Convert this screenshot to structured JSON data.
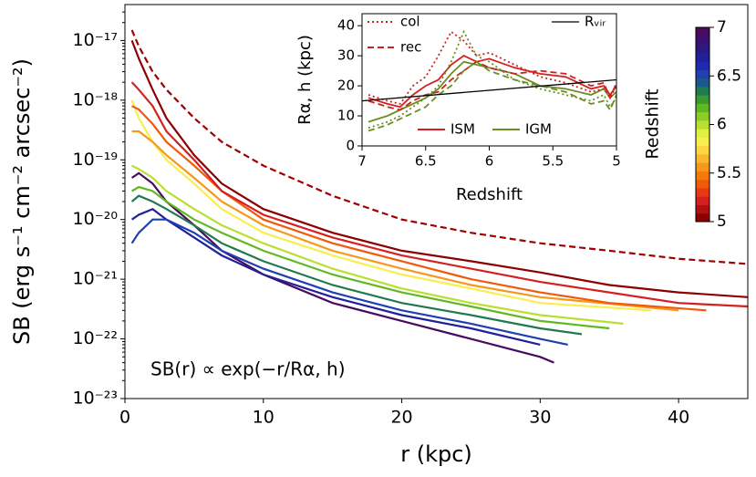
{
  "chart_data": [
    {
      "type": "line",
      "xlabel": "r  (kpc)",
      "ylabel": "SB  (erg s⁻¹ cm⁻² arcsec⁻²)",
      "annotation": "SB(r) ∝ exp(−r/Rα, h)",
      "log_y": true,
      "xlim": [
        0,
        45
      ],
      "ylim": [
        1e-23,
        4e-17
      ],
      "xticks": [
        0,
        10,
        20,
        30,
        40
      ],
      "yticks": [
        {
          "value": 1e-23,
          "label": "10⁻²³"
        },
        {
          "value": 1e-22,
          "label": "10⁻²²"
        },
        {
          "value": 1e-21,
          "label": "10⁻²¹"
        },
        {
          "value": 1e-20,
          "label": "10⁻²⁰"
        },
        {
          "value": 1e-19,
          "label": "10⁻¹⁹"
        },
        {
          "value": 1e-18,
          "label": "10⁻¹⁸"
        },
        {
          "value": 1e-17,
          "label": "10⁻¹⁷"
        }
      ],
      "series": [
        {
          "color": "#4a0a60",
          "x": [
            0.5,
            1,
            2,
            3,
            5,
            7,
            10,
            15,
            20,
            25,
            30,
            31
          ],
          "values": [
            5e-20,
            6e-20,
            4e-20,
            2e-20,
            8e-21,
            3e-21,
            1.2e-21,
            4e-22,
            2e-22,
            1e-22,
            5e-23,
            4e-23
          ]
        },
        {
          "color": "#20209a",
          "x": [
            0.5,
            1,
            2,
            3,
            5,
            7,
            10,
            15,
            20,
            25,
            30
          ],
          "values": [
            1e-20,
            1.2e-20,
            1.5e-20,
            1e-20,
            5e-21,
            2.5e-21,
            1.2e-21,
            5e-22,
            2.5e-22,
            1.5e-22,
            8e-23
          ]
        },
        {
          "color": "#1e40b0",
          "x": [
            0.5,
            1,
            2,
            3,
            5,
            7,
            10,
            15,
            20,
            25,
            30,
            32
          ],
          "values": [
            4e-21,
            6e-21,
            1e-20,
            1e-20,
            6e-21,
            3e-21,
            1.5e-21,
            6e-22,
            3e-22,
            1.8e-22,
            1e-22,
            8e-23
          ]
        },
        {
          "color": "#207a50",
          "x": [
            0.5,
            1,
            2,
            3,
            5,
            7,
            10,
            15,
            20,
            25,
            30,
            33
          ],
          "values": [
            2e-20,
            2.5e-20,
            2e-20,
            1.5e-20,
            8e-21,
            4e-21,
            2e-21,
            8e-22,
            4e-22,
            2.5e-22,
            1.5e-22,
            1.2e-22
          ]
        },
        {
          "color": "#60b820",
          "x": [
            0.5,
            1,
            2,
            3,
            5,
            7,
            10,
            15,
            20,
            25,
            30,
            35
          ],
          "values": [
            3e-20,
            3.5e-20,
            3e-20,
            2e-20,
            1e-20,
            6e-21,
            3e-21,
            1.2e-21,
            6e-22,
            3.5e-22,
            2e-22,
            1.5e-22
          ]
        },
        {
          "color": "#b8e030",
          "x": [
            0.5,
            1,
            2,
            3,
            5,
            7,
            10,
            15,
            20,
            25,
            30,
            36
          ],
          "values": [
            8e-20,
            7e-20,
            5e-20,
            3e-20,
            1.5e-20,
            8e-21,
            4e-21,
            1.5e-21,
            7e-22,
            4e-22,
            2.5e-22,
            1.8e-22
          ]
        },
        {
          "color": "#f8ee50",
          "x": [
            0.5,
            1,
            2,
            3,
            5,
            7,
            10,
            15,
            20,
            25,
            30,
            38
          ],
          "values": [
            1e-18,
            5e-19,
            2e-19,
            1e-19,
            4e-20,
            1.5e-20,
            6e-21,
            2.5e-21,
            1.2e-21,
            7e-22,
            4e-22,
            3e-22
          ]
        },
        {
          "color": "#f8981a",
          "x": [
            0.5,
            1,
            2,
            3,
            5,
            7,
            10,
            15,
            20,
            25,
            30,
            40
          ],
          "values": [
            3e-19,
            3e-19,
            2e-19,
            1.2e-19,
            5e-20,
            2e-20,
            8e-21,
            3e-21,
            1.5e-21,
            8e-22,
            5e-22,
            3e-22
          ]
        },
        {
          "color": "#f05a0a",
          "x": [
            0.5,
            1,
            2,
            3,
            5,
            7,
            10,
            15,
            20,
            25,
            30,
            35,
            42
          ],
          "values": [
            8e-19,
            7e-19,
            4e-19,
            2e-19,
            8e-20,
            3e-20,
            1e-20,
            4e-21,
            2e-21,
            1e-21,
            6e-22,
            4e-22,
            3e-22
          ]
        },
        {
          "color": "#d42020",
          "x": [
            0.5,
            1,
            2,
            3,
            5,
            7,
            10,
            15,
            20,
            25,
            30,
            35,
            40,
            45
          ],
          "values": [
            2e-18,
            1.5e-18,
            8e-19,
            3e-19,
            1e-19,
            3e-20,
            1.2e-20,
            5e-21,
            2.5e-21,
            1.5e-21,
            9e-22,
            6e-22,
            4e-22,
            3.5e-22
          ]
        },
        {
          "color": "#8b0000",
          "x": [
            0.5,
            1,
            2,
            3,
            5,
            7,
            10,
            15,
            20,
            25,
            30,
            35,
            40,
            45
          ],
          "values": [
            1e-17,
            5e-18,
            1.5e-18,
            5e-19,
            1.2e-19,
            4e-20,
            1.5e-20,
            6e-21,
            3e-21,
            2e-21,
            1.3e-21,
            8e-22,
            6e-22,
            5e-22
          ]
        },
        {
          "color": "#a00000",
          "style": "dashed",
          "x": [
            0.5,
            1,
            2,
            3,
            5,
            7,
            10,
            15,
            20,
            25,
            30,
            35,
            40,
            45
          ],
          "values": [
            1.5e-17,
            8e-18,
            3e-18,
            1.5e-18,
            5e-19,
            2e-19,
            8e-20,
            2.5e-20,
            1e-20,
            6e-21,
            4e-21,
            3e-21,
            2.2e-21,
            1.8e-21
          ]
        }
      ],
      "colorbar": {
        "label": "Redshift",
        "lim": [
          5,
          7
        ],
        "ticks": [
          5,
          5.5,
          6,
          6.5,
          7
        ],
        "colors": [
          "#8b0000",
          "#b01010",
          "#d42020",
          "#e83a10",
          "#f05a0a",
          "#f57a0a",
          "#f8981a",
          "#fab830",
          "#fcd840",
          "#f8ee50",
          "#e0f040",
          "#b8e030",
          "#8ccc28",
          "#60b820",
          "#3a9a30",
          "#207a50",
          "#1a5a8a",
          "#1e40b0",
          "#2028b0",
          "#20209a",
          "#2a1a80",
          "#3a1070",
          "#4a0a60"
        ]
      }
    },
    {
      "type": "line",
      "xlabel": "Redshift",
      "ylabel": "Rα, h  (kpc)",
      "xlim": [
        7,
        5
      ],
      "ylim": [
        0,
        44
      ],
      "xticks": [
        7,
        6.5,
        6,
        5.5,
        5
      ],
      "yticks": [
        0,
        10,
        20,
        30,
        40
      ],
      "series": [
        {
          "name": "ISM",
          "color": "#d42020",
          "style": "solid",
          "x": [
            6.95,
            6.8,
            6.7,
            6.6,
            6.5,
            6.4,
            6.3,
            6.2,
            6.1,
            6.0,
            5.8,
            5.6,
            5.4,
            5.2,
            5.1,
            5.05,
            5.0
          ],
          "values": [
            16,
            14,
            13,
            17,
            20,
            22,
            27,
            30,
            28,
            29,
            26,
            24,
            23,
            19,
            20,
            17,
            20
          ]
        },
        {
          "name": "IGM",
          "color": "#6b8e23",
          "style": "solid",
          "x": [
            6.95,
            6.8,
            6.7,
            6.6,
            6.5,
            6.4,
            6.3,
            6.2,
            6.1,
            6.0,
            5.8,
            5.6,
            5.4,
            5.2,
            5.1,
            5.05,
            5.0
          ],
          "values": [
            8,
            10,
            12,
            14,
            16,
            19,
            24,
            28,
            27,
            26,
            24,
            20,
            19,
            17,
            19,
            16,
            18
          ]
        },
        {
          "name": "col",
          "color": "#cc2222",
          "style": "dotted",
          "x": [
            6.95,
            6.8,
            6.7,
            6.6,
            6.5,
            6.4,
            6.3,
            6.2,
            6.1,
            6.0,
            5.8,
            5.6,
            5.4,
            5.2,
            5.1,
            5.05,
            5.0
          ],
          "values": [
            17,
            15,
            14,
            20,
            23,
            30,
            38,
            35,
            30,
            31,
            27,
            23,
            21,
            18,
            19,
            16,
            20
          ]
        },
        {
          "name": "rec",
          "color": "#cc2222",
          "style": "dashed",
          "x": [
            6.95,
            6.8,
            6.7,
            6.6,
            6.5,
            6.4,
            6.3,
            6.2,
            6.1,
            6.0,
            5.8,
            5.6,
            5.4,
            5.2,
            5.1,
            5.05,
            5.0
          ],
          "values": [
            15,
            13,
            12,
            15,
            17,
            18,
            22,
            25,
            28,
            26,
            24,
            25,
            24,
            20,
            21,
            16,
            21
          ]
        },
        {
          "color": "#6b8e23",
          "style": "dotted",
          "x": [
            6.95,
            6.8,
            6.7,
            6.6,
            6.5,
            6.4,
            6.3,
            6.2,
            6.1,
            6.0,
            5.8,
            5.6,
            5.4,
            5.2,
            5.1,
            5.05,
            5.0
          ],
          "values": [
            6,
            8,
            10,
            13,
            16,
            20,
            28,
            38,
            30,
            28,
            22,
            19,
            17,
            15,
            17,
            13,
            16
          ]
        },
        {
          "color": "#6b8e23",
          "style": "dashed",
          "x": [
            6.95,
            6.8,
            6.7,
            6.6,
            6.5,
            6.4,
            6.3,
            6.2,
            6.1,
            6.0,
            5.8,
            5.6,
            5.4,
            5.2,
            5.1,
            5.05,
            5.0
          ],
          "values": [
            5,
            7,
            9,
            11,
            13,
            17,
            20,
            25,
            28,
            25,
            22,
            20,
            18,
            14,
            15,
            12,
            17
          ]
        },
        {
          "name": "Rᵥᵢᵣ",
          "color": "#000000",
          "style": "solid",
          "thin": true,
          "x": [
            7,
            5
          ],
          "values": [
            15,
            22
          ]
        }
      ]
    }
  ]
}
